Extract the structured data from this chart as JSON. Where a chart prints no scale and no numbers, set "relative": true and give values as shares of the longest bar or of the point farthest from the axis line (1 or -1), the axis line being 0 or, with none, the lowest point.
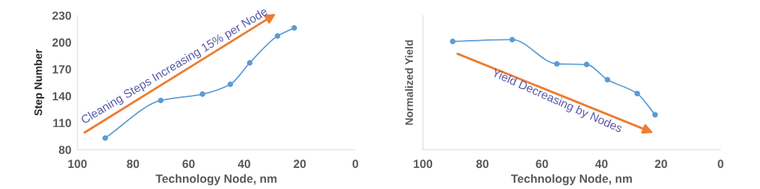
{
  "chart_data": [
    {
      "type": "line",
      "xlabel": "Technology Node, nm",
      "ylabel": "Step Number",
      "x": [
        90,
        70,
        55,
        45,
        38,
        28,
        22
      ],
      "xlim": [
        100,
        0
      ],
      "xticks": [
        100,
        80,
        60,
        40,
        20,
        0
      ],
      "ylim": [
        80,
        230
      ],
      "yticks": [
        80,
        110,
        140,
        170,
        200,
        230
      ],
      "marker": "circle",
      "grid": false,
      "series": [
        {
          "color": "#5b9bd5",
          "values": [
            93,
            135,
            142,
            153,
            177,
            207,
            216
          ]
        }
      ],
      "annotations": [
        "Cleaning Steps Increasing 15% per Node"
      ]
    },
    {
      "type": "line",
      "xlabel": "Technology Node, nm",
      "ylabel": "Normalized Yield",
      "x": [
        90,
        70,
        55,
        45,
        38,
        28,
        22
      ],
      "xlim": [
        100,
        0
      ],
      "xticks": [
        100,
        80,
        60,
        40,
        20,
        0
      ],
      "relative": true,
      "marker": "circle",
      "grid": false,
      "tick_labels": "x",
      "series": [
        {
          "color": "#5b9bd5",
          "values": [
            0.984,
            1,
            0.78,
            0.774,
            0.636,
            0.51,
            0.317
          ]
        }
      ],
      "annotations": [
        "Yield Decreasing by Nodes"
      ]
    }
  ]
}
